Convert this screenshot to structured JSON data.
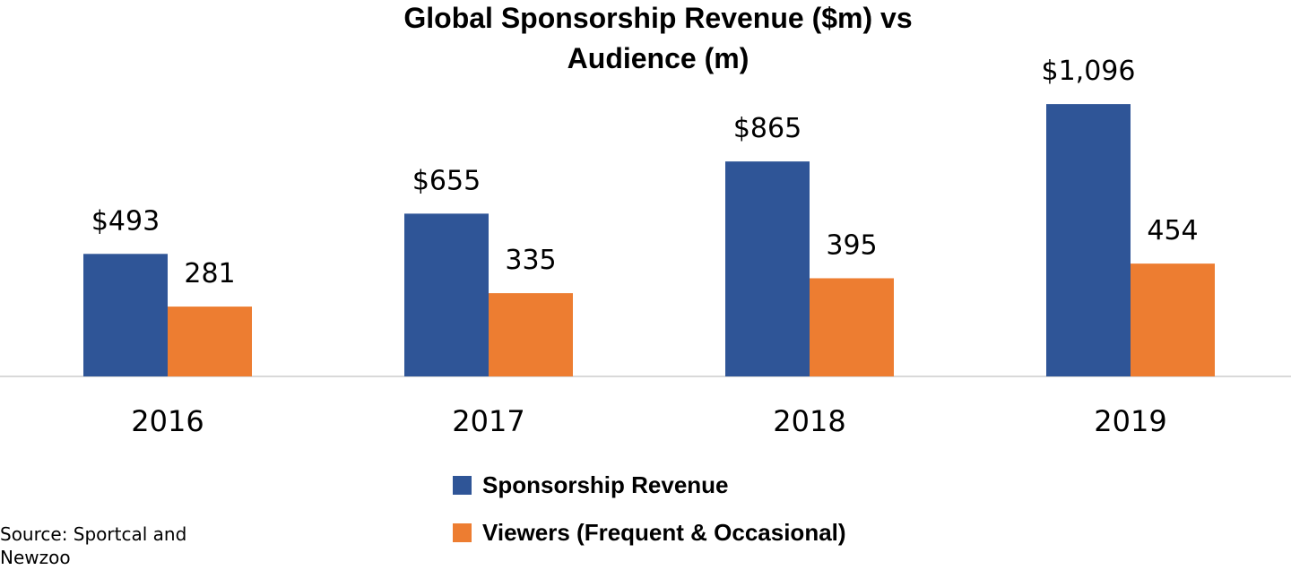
{
  "chart_data": {
    "type": "bar",
    "title_lines": [
      "Global Sponsorship Revenue ($m) vs",
      "Audience (m)"
    ],
    "categories": [
      "2016",
      "2017",
      "2018",
      "2019"
    ],
    "series": [
      {
        "name": "Sponsorship Revenue",
        "values": [
          493,
          655,
          865,
          1096
        ],
        "labels": [
          "$493",
          "$655",
          "$865",
          "$1,096"
        ],
        "color": "#2F5597"
      },
      {
        "name": "Viewers (Frequent & Occasional)",
        "values": [
          281,
          335,
          395,
          454
        ],
        "labels": [
          "281",
          "335",
          "395",
          "454"
        ],
        "color": "#ED7D31"
      }
    ],
    "xlabel": "",
    "ylabel": "",
    "ylim": [
      0,
      1100
    ],
    "grid": false,
    "legend_position": "bottom"
  },
  "source": "Source: Sportcal and Newzoo",
  "colors": {
    "axis": "#D9D9D9"
  }
}
